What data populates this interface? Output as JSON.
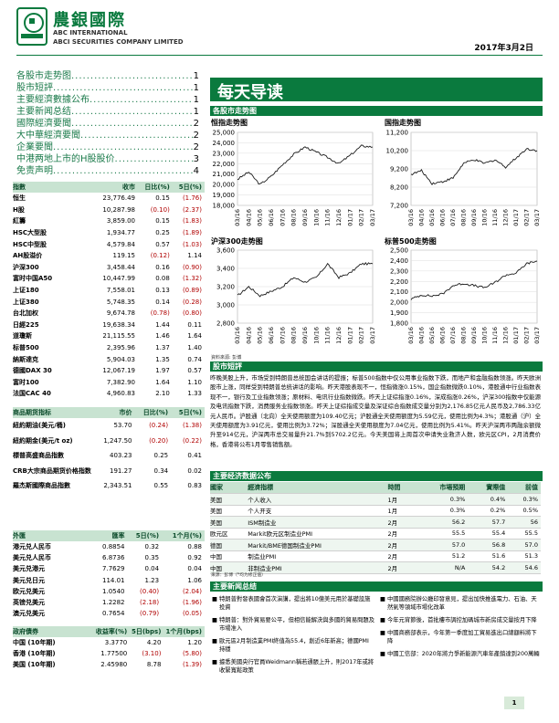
{
  "header": {
    "brand_cn": "農銀國際",
    "brand_en1": "ABC INTERNATIONAL",
    "brand_en2": "ABCI SECURITIES COMPANY LIMITED",
    "date": "2017年3月2日"
  },
  "toc": [
    {
      "label": "各股市走势图",
      "page": "1"
    },
    {
      "label": "股市短評",
      "page": "1"
    },
    {
      "label": "主要經濟數據公布",
      "page": "1"
    },
    {
      "label": "主要新闻总结",
      "page": "1"
    },
    {
      "label": "國際經濟要聞",
      "page": "2"
    },
    {
      "label": "大中華經濟要聞",
      "page": "2"
    },
    {
      "label": "企業要聞",
      "page": "2"
    },
    {
      "label": "中港两地上市的H股股价",
      "page": "3"
    },
    {
      "label": "免责声明",
      "page": "4"
    }
  ],
  "title": "每天导读",
  "charts_section": "各股市走势图",
  "source_note": "資料來源: 彭博",
  "chart_data": [
    {
      "type": "line",
      "title": "恒指走势图",
      "x": [
        "03/16",
        "04/16",
        "05/16",
        "06/16",
        "07/16",
        "08/16",
        "09/16",
        "10/16",
        "11/16",
        "12/16",
        "01/17",
        "02/17",
        "03/17"
      ],
      "series": [
        {
          "values": [
            20500,
            21200,
            20000,
            20800,
            21900,
            22900,
            23600,
            23100,
            22600,
            22000,
            22800,
            23700,
            23600
          ]
        }
      ],
      "ylim": [
        18000,
        25000
      ],
      "yticks": [
        "18,000",
        "19,000",
        "20,000",
        "21,000",
        "22,000",
        "23,000",
        "24,000",
        "25,000"
      ]
    },
    {
      "type": "line",
      "title": "国指走势图",
      "x": [
        "03/16",
        "04/16",
        "05/16",
        "06/16",
        "07/16",
        "08/16",
        "09/16",
        "10/16",
        "11/16",
        "12/16",
        "01/17",
        "02/17",
        "03/17"
      ],
      "series": [
        {
          "values": [
            8900,
            9100,
            8400,
            8500,
            8700,
            9500,
            9700,
            9500,
            9700,
            9300,
            9800,
            10300,
            10200
          ]
        }
      ],
      "ylim": [
        7200,
        11200
      ],
      "yticks": [
        "7,200",
        "8,200",
        "9,200",
        "10,200",
        "11,200"
      ]
    },
    {
      "type": "line",
      "title": "沪深300走势图",
      "x": [
        "03/16",
        "04/16",
        "05/16",
        "06/16",
        "07/16",
        "08/16",
        "09/16",
        "10/16",
        "11/16",
        "12/16",
        "01/17",
        "02/17",
        "03/17"
      ],
      "series": [
        {
          "values": [
            3100,
            3200,
            3100,
            3150,
            3200,
            3300,
            3250,
            3300,
            3450,
            3300,
            3350,
            3450,
            3450
          ]
        }
      ],
      "ylim": [
        2800,
        3600
      ],
      "yticks": [
        "2,800",
        "3,000",
        "3,200",
        "3,400",
        "3,600"
      ]
    },
    {
      "type": "line",
      "title": "标普500走势图",
      "x": [
        "03/16",
        "04/16",
        "05/16",
        "06/16",
        "07/16",
        "08/16",
        "09/16",
        "10/16",
        "11/16",
        "12/16",
        "01/17",
        "02/17",
        "03/17"
      ],
      "series": [
        {
          "values": [
            2030,
            2070,
            2060,
            2080,
            2160,
            2180,
            2160,
            2140,
            2190,
            2260,
            2280,
            2370,
            2395
          ]
        }
      ],
      "ylim": [
        1800,
        2500
      ],
      "yticks": [
        "1,800",
        "1,900",
        "2,000",
        "2,100",
        "2,200",
        "2,300",
        "2,400",
        "2,500"
      ]
    }
  ],
  "market_table": {
    "headers": [
      "指數",
      "收市",
      "日比(%)",
      "5日(%)"
    ],
    "rows": [
      [
        "恒生",
        "23,776.49",
        "0.15",
        "(1.76)"
      ],
      [
        "H股",
        "10,287.98",
        "(0.10)",
        "(2.37)"
      ],
      [
        "紅籌",
        "3,859.00",
        "0.15",
        "(1.83)"
      ],
      [
        "HSC大型股",
        "1,934.77",
        "0.25",
        "(1.89)"
      ],
      [
        "HSC中型股",
        "4,579.84",
        "0.57",
        "(1.03)"
      ],
      [
        "AH股溢价",
        "119.15",
        "(0.12)",
        "1.14"
      ],
      [
        "沪深300",
        "3,458.44",
        "0.16",
        "(0.90)"
      ],
      [
        "富时中国A50",
        "10,447.99",
        "0.08",
        "(1.32)"
      ],
      [
        "上证180",
        "7,558.01",
        "0.13",
        "(0.89)"
      ],
      [
        "上证380",
        "5,748.35",
        "0.14",
        "(0.28)"
      ],
      [
        "台北加权",
        "9,674.78",
        "(0.78)",
        "(0.80)"
      ],
      [
        "日經225",
        "19,638.34",
        "1.44",
        "0.11"
      ],
      [
        "道瓊斯",
        "21,115.55",
        "1.46",
        "1.64"
      ],
      [
        "标普500",
        "2,395.96",
        "1.37",
        "1.40"
      ],
      [
        "納斯達克",
        "5,904.03",
        "1.35",
        "0.74"
      ],
      [
        "德國DAX 30",
        "12,067.19",
        "1.97",
        "0.57"
      ],
      [
        "富时100",
        "7,382.90",
        "1.64",
        "1.10"
      ],
      [
        "法国CAC 40",
        "4,960.83",
        "2.10",
        "1.33"
      ]
    ]
  },
  "commodity_table": {
    "headers": [
      "商品期货指标",
      "市价",
      "日比(%)",
      "5日(%)"
    ],
    "rows": [
      [
        "紐約期油(美元/桶)",
        "53.70",
        "(0.24)",
        "(1.38)"
      ],
      [
        "紐約期金(美元/t oz)",
        "1,247.50",
        "(0.20)",
        "(0.22)"
      ],
      [
        "標普高盛商品指數",
        "403.23",
        "0.25",
        "0.41"
      ],
      [
        "CRB大宗商品期货价格指数",
        "191.27",
        "0.34",
        "0.02"
      ],
      [
        "羅杰斯國際商品指數",
        "2,343.51",
        "0.55",
        "0.83"
      ]
    ]
  },
  "fx_table": {
    "headers": [
      "外匯",
      "匯率",
      "5日(%)",
      "1个月(%)"
    ],
    "rows": [
      [
        "港元兑人民币",
        "0.8854",
        "0.32",
        "0.88"
      ],
      [
        "美元兑人民币",
        "6.8736",
        "0.35",
        "0.92"
      ],
      [
        "美元兑港元",
        "7.7629",
        "0.04",
        "0.04"
      ],
      [
        "美元兑日元",
        "114.01",
        "1.23",
        "1.06"
      ],
      [
        "欧元兑美元",
        "1.0540",
        "(0.40)",
        "(2.04)"
      ],
      [
        "英镑兑美元",
        "1.2282",
        "(2.18)",
        "(1.96)"
      ],
      [
        "澳元兑美元",
        "0.7654",
        "(0.79)",
        "(0.05)"
      ]
    ]
  },
  "bond_table": {
    "headers": [
      "政府債券",
      "收益率(%)",
      "5日(bps)",
      "1个月(bps)"
    ],
    "rows": [
      [
        "中国 (10年期)",
        "3.3770",
        "4.20",
        "1.20"
      ],
      [
        "香港 (10年期)",
        "1.77500",
        "(3.10)",
        "(5.80)"
      ],
      [
        "美国 (10年期)",
        "2.45980",
        "8.78",
        "(1.39)"
      ]
    ]
  },
  "commentary": {
    "heading": "股市短評",
    "text": "昨晚美股上升，市场受到特朗普总统国会讲话的提振；标普500指数中仅公用事业指数下跌，而地产和金融指数领涨。昨天欧洲股市上涨，同样受到特朗普总统讲话的影响。昨天港股表现不一，恒指微涨0.15%，国企指数微跌0.10%，港股通中行业指数表现不一，银行及工业指数领涨；原材料、电讯行业指数微跌。昨天上证综指涨0.16%，深成指涨0.26%，沪深300指数中仅能源及电讯指数下跌，消费服务业指数领涨。昨天上证综指成交量及深证综合指数成交量分别为2,176.85亿元人民币及2,786.33亿元人民币。沪股通（北向）全天使用额度为109.40亿元；沪股通全天使用额度为5.59亿元，使用比例为4.3%；港股通（沪）全天使用额度为3.91亿元，使用比例为3.72%；深股通全天使用额度为7.04亿元，使用比例为5.41%。昨天沪深两市两融余额微升至914亿元，沪深两市总交易量升21.7%到5702.2亿元。今天美国将上周首次申请失业救济人数，欧元区CPI，2月消费价格，香港将公布1月零售销售额。"
  },
  "econ": {
    "heading": "主要经济数据公布",
    "headers": [
      "國家",
      "經濟指標",
      "時間",
      "市場預期",
      "實際值",
      "前值"
    ],
    "rows": [
      [
        "美国",
        "个人收入",
        "1月",
        "0.3%",
        "0.4%",
        "0.3%"
      ],
      [
        "美国",
        "个人开支",
        "1月",
        "0.3%",
        "0.2%",
        "0.5%"
      ],
      [
        "美国",
        "ISM制造业",
        "2月",
        "56.2",
        "57.7",
        "56"
      ],
      [
        "欧元区",
        "Markit欧元区制造业PMI",
        "2月",
        "55.5",
        "55.4",
        "55.5"
      ],
      [
        "德国",
        "Markit/BME德国制造业PMI",
        "2月",
        "57.0",
        "56.8",
        "57.0"
      ],
      [
        "中国",
        "制造业PMI",
        "2月",
        "51.2",
        "51.6",
        "51.3"
      ],
      [
        "中国",
        "非制造业PMI",
        "2月",
        "N/A",
        "54.2",
        "54.6"
      ]
    ],
    "source": "來源：彭博（*均为修正值）"
  },
  "news": {
    "heading": "主要新闻总结",
    "left": [
      "特朗普對發表國會首次演講，提出將10億美元用於基礎設施投資",
      "特朗普：對外貿易要公平，但相信能解決與多國的貿易問題及市場准入",
      "歐元區2月制造業PMI終值為55.4，創近6年新高；德國PMI持穩",
      "據悉美國央行官員Weidmann稱若通脹上升，則2017年或將收緊寬鬆政策"
    ],
    "right": [
      "中國國務院辦公廳印發意見，提出加快推進電力、石油、天然氣等領域市場化改革",
      "今年元宵節後，首批樓市調控加碼城市新房成交量按月下降",
      "中國商務部表示，今年第一季度加工貿易進出口總額料將下降",
      "中國工信部：2020年將力爭新能源汽車年產銷達到200萬輛"
    ]
  },
  "page_number": "1",
  "colors": {
    "brand": "#0a7a3e",
    "header_bg": "#c8e3d1",
    "negative": "#b00000",
    "line": "#1a1a1a"
  }
}
